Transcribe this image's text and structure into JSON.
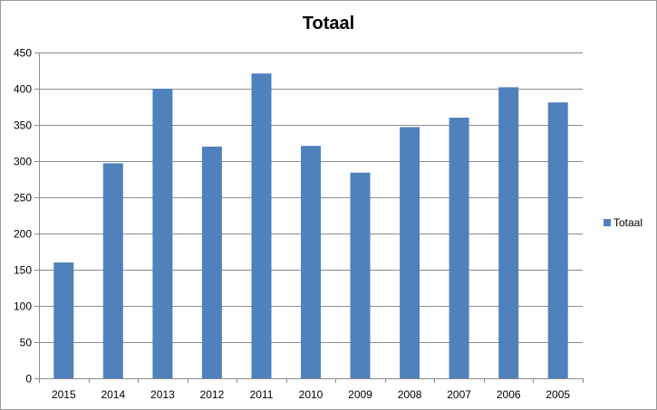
{
  "chart_data": {
    "type": "bar",
    "title": "Totaal",
    "xlabel": "",
    "ylabel": "",
    "categories": [
      "2015",
      "2014",
      "2013",
      "2012",
      "2011",
      "2010",
      "2009",
      "2008",
      "2007",
      "2006",
      "2005"
    ],
    "series": [
      {
        "name": "Totaal",
        "values": [
          160,
          297,
          400,
          320,
          421,
          321,
          284,
          347,
          360,
          402,
          381
        ],
        "color": "#4f81bd"
      }
    ],
    "ylim": [
      0,
      450
    ],
    "yticks": [
      "0",
      "50",
      "100",
      "150",
      "200",
      "250",
      "300",
      "350",
      "400",
      "450"
    ],
    "grid": true,
    "legend_position": "right"
  }
}
